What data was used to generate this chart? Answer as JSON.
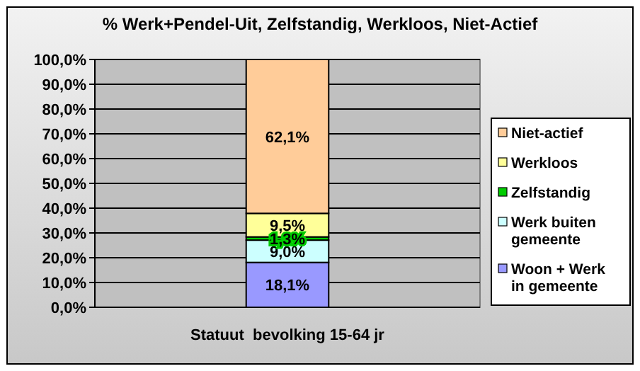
{
  "chart_data": {
    "type": "bar",
    "title": "% Werk+Pendel-Uit, Zelfstandig, Werkloos, Niet-Actief",
    "categories": [
      "Statuut  bevolking 15-64 jr"
    ],
    "stacked": true,
    "legend": "right",
    "grid": "y",
    "ylim": [
      0,
      100
    ],
    "yticks": [
      {
        "value": 0,
        "label": "0,0%"
      },
      {
        "value": 10,
        "label": "10,0%"
      },
      {
        "value": 20,
        "label": "20,0%"
      },
      {
        "value": 30,
        "label": "30,0%"
      },
      {
        "value": 40,
        "label": "40,0%"
      },
      {
        "value": 50,
        "label": "50,0%"
      },
      {
        "value": 60,
        "label": "60,0%"
      },
      {
        "value": 70,
        "label": "70,0%"
      },
      {
        "value": 80,
        "label": "80,0%"
      },
      {
        "value": 90,
        "label": "90,0%"
      },
      {
        "value": 100,
        "label": "100,0%"
      }
    ],
    "series": [
      {
        "name": "Woon + Werk in gemeente",
        "color": "#9999ff",
        "values": [
          18.1
        ],
        "value_labels": [
          "18,1%"
        ]
      },
      {
        "name": "Werk buiten gemeente",
        "color": "#ccffff",
        "values": [
          9.0
        ],
        "value_labels": [
          "9,0%"
        ]
      },
      {
        "name": "Zelfstandig",
        "color": "#00cc00",
        "values": [
          1.3
        ],
        "value_labels": [
          "1,3%"
        ]
      },
      {
        "name": "Werkloos",
        "color": "#ffff99",
        "values": [
          9.5
        ],
        "value_labels": [
          "9,5%"
        ]
      },
      {
        "name": "Niet-actief",
        "color": "#ffcc99",
        "values": [
          62.1
        ],
        "value_labels": [
          "62,1%"
        ]
      }
    ]
  }
}
